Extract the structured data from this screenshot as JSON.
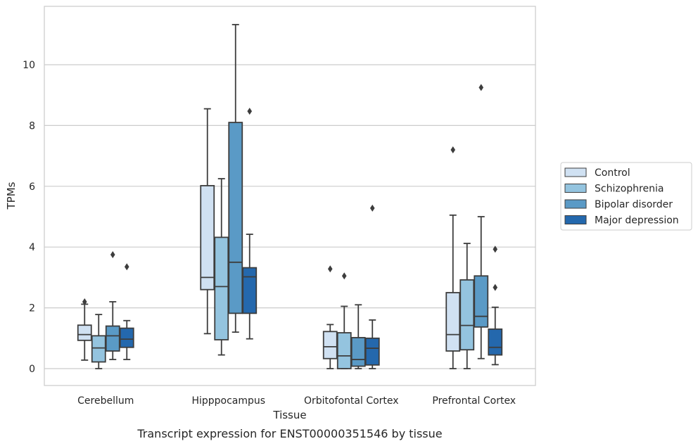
{
  "chart_data": {
    "type": "box",
    "title": "Transcript expression for ENST00000351546 by tissue",
    "xlabel": "Tissue",
    "ylabel": "TPMs",
    "ylim": [
      -0.55,
      11.75
    ],
    "yticks": [
      0,
      2,
      4,
      6,
      8,
      10
    ],
    "grid": "horizontal",
    "legend_position": "right",
    "categories": [
      "Cerebellum",
      "Hipppocampus",
      "Orbitofontal Cortex",
      "Prefrontal Cortex"
    ],
    "series": [
      {
        "name": "Control",
        "color": "#d0e1f2",
        "boxes": [
          {
            "whisker_low": 0.28,
            "q1": 0.93,
            "median": 1.12,
            "q3": 1.43,
            "whisker_high": 2.12,
            "outliers": [
              2.2
            ]
          },
          {
            "whisker_low": 1.15,
            "q1": 2.6,
            "median": 3.0,
            "q3": 6.02,
            "whisker_high": 8.55,
            "outliers": []
          },
          {
            "whisker_low": 0.0,
            "q1": 0.33,
            "median": 0.72,
            "q3": 1.22,
            "whisker_high": 1.45,
            "outliers": [
              3.28
            ]
          },
          {
            "whisker_low": 0.0,
            "q1": 0.58,
            "median": 1.12,
            "q3": 2.5,
            "whisker_high": 5.05,
            "outliers": [
              7.2
            ]
          }
        ]
      },
      {
        "name": "Schizophrenia",
        "color": "#94c4df",
        "boxes": [
          {
            "whisker_low": 0.0,
            "q1": 0.22,
            "median": 0.68,
            "q3": 1.08,
            "whisker_high": 1.78,
            "outliers": []
          },
          {
            "whisker_low": 0.45,
            "q1": 0.95,
            "median": 2.7,
            "q3": 4.32,
            "whisker_high": 6.25,
            "outliers": []
          },
          {
            "whisker_low": 0.0,
            "q1": 0.0,
            "median": 0.42,
            "q3": 1.18,
            "whisker_high": 2.05,
            "outliers": [
              3.05
            ]
          },
          {
            "whisker_low": 0.0,
            "q1": 0.62,
            "median": 1.42,
            "q3": 2.92,
            "whisker_high": 4.12,
            "outliers": []
          }
        ]
      },
      {
        "name": "Bipolar disorder",
        "color": "#5a9ac6",
        "boxes": [
          {
            "whisker_low": 0.3,
            "q1": 0.58,
            "median": 1.08,
            "q3": 1.4,
            "whisker_high": 2.2,
            "outliers": [
              3.75
            ]
          },
          {
            "whisker_low": 1.2,
            "q1": 1.82,
            "median": 3.5,
            "q3": 8.1,
            "whisker_high": 11.32,
            "outliers": []
          },
          {
            "whisker_low": 0.0,
            "q1": 0.08,
            "median": 0.3,
            "q3": 1.02,
            "whisker_high": 2.1,
            "outliers": []
          },
          {
            "whisker_low": 0.33,
            "q1": 1.37,
            "median": 1.72,
            "q3": 3.05,
            "whisker_high": 5.0,
            "outliers": [
              9.25
            ]
          }
        ]
      },
      {
        "name": "Major depression",
        "color": "#2468ad",
        "boxes": [
          {
            "whisker_low": 0.3,
            "q1": 0.7,
            "median": 0.97,
            "q3": 1.33,
            "whisker_high": 1.58,
            "outliers": [
              3.35
            ]
          },
          {
            "whisker_low": 0.98,
            "q1": 1.82,
            "median": 3.02,
            "q3": 3.32,
            "whisker_high": 4.42,
            "outliers": [
              8.47
            ]
          },
          {
            "whisker_low": 0.0,
            "q1": 0.12,
            "median": 0.67,
            "q3": 1.0,
            "whisker_high": 1.6,
            "outliers": [
              5.28
            ]
          },
          {
            "whisker_low": 0.13,
            "q1": 0.45,
            "median": 0.7,
            "q3": 1.3,
            "whisker_high": 2.02,
            "outliers": [
              2.67,
              3.93
            ]
          }
        ]
      }
    ]
  }
}
